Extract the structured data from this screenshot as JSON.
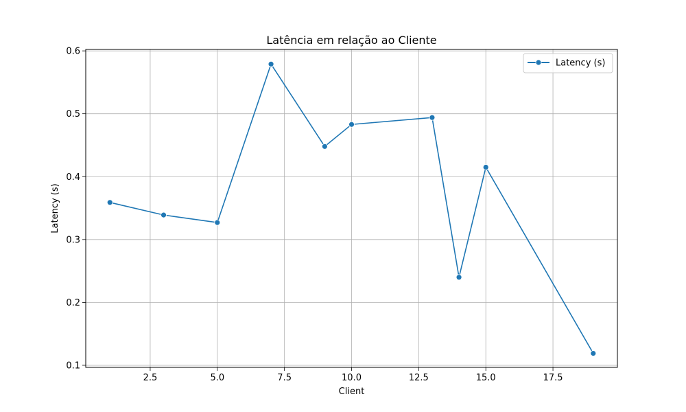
{
  "chart_data": {
    "type": "line",
    "title": "Latência em relação ao Cliente",
    "xlabel": "Client",
    "ylabel": "Latency (s)",
    "xlim": [
      0.1,
      19.9
    ],
    "ylim": [
      0.0967,
      0.6023
    ],
    "x_ticks": [
      2.5,
      5.0,
      7.5,
      10.0,
      12.5,
      15.0,
      17.5
    ],
    "x_tick_labels": [
      "2.5",
      "5.0",
      "7.5",
      "10.0",
      "12.5",
      "15.0",
      "17.5"
    ],
    "y_ticks": [
      0.1,
      0.2,
      0.3,
      0.4,
      0.5,
      0.6
    ],
    "y_tick_labels": [
      "0.1",
      "0.2",
      "0.3",
      "0.4",
      "0.5",
      "0.6"
    ],
    "grid": true,
    "legend_position": "top-right",
    "series": [
      {
        "name": "Latency (s)",
        "color": "#1f77b4",
        "marker": "circle",
        "x": [
          1,
          3,
          5,
          7,
          9,
          10,
          13,
          14,
          15,
          19
        ],
        "y": [
          0.359,
          0.339,
          0.327,
          0.579,
          0.448,
          0.483,
          0.494,
          0.24,
          0.415,
          0.119
        ]
      }
    ]
  }
}
